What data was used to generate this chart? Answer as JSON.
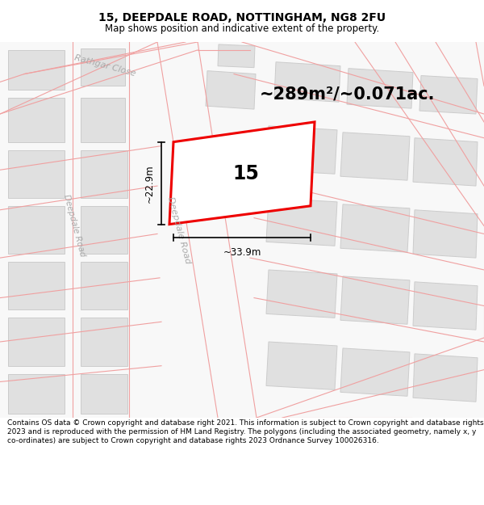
{
  "title_line1": "15, DEEPDALE ROAD, NOTTINGHAM, NG8 2FU",
  "title_line2": "Map shows position and indicative extent of the property.",
  "area_text": "~289m²/~0.071ac.",
  "label_15": "15",
  "dim_width": "~33.9m",
  "dim_height": "~22.9m",
  "footer": "Contains OS data © Crown copyright and database right 2021. This information is subject to Crown copyright and database rights 2023 and is reproduced with the permission of HM Land Registry. The polygons (including the associated geometry, namely x, y co-ordinates) are subject to Crown copyright and database rights 2023 Ordnance Survey 100026316.",
  "bg_color": "#f5f5f5",
  "road_line_color": "#f0a0a0",
  "building_fill": "#e0e0e0",
  "building_edge": "#cccccc",
  "highlight_edge": "#ee0000",
  "street_label_color": "#aaaaaa",
  "title_fontsize": 10,
  "subtitle_fontsize": 8.5,
  "footer_fontsize": 6.5
}
